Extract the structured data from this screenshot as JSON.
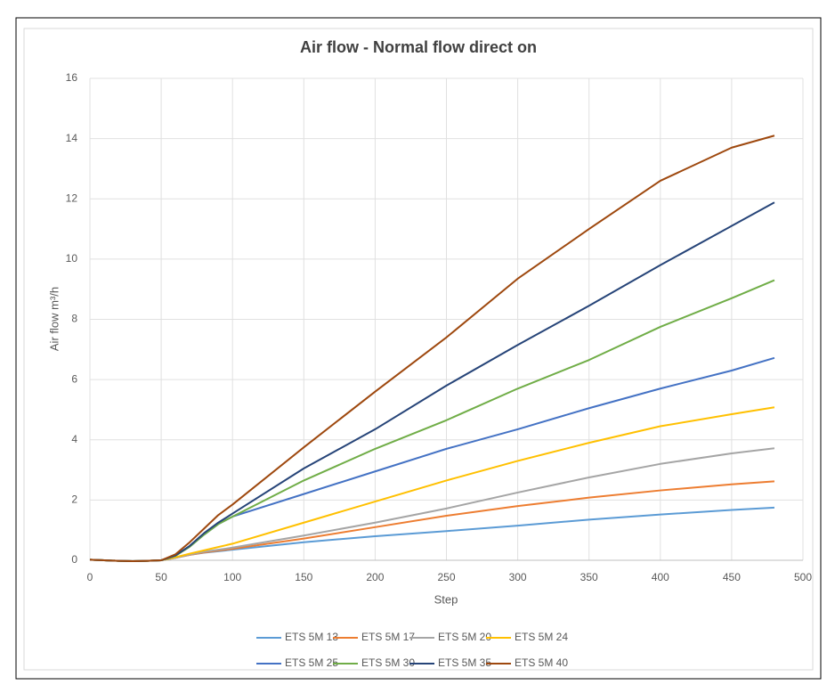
{
  "chart_data": {
    "type": "line",
    "title": "Air flow - Normal flow direct on",
    "x_label": "Step",
    "y_label": "Air flow m³/h",
    "x": [
      0,
      10,
      20,
      30,
      40,
      50,
      60,
      70,
      80,
      90,
      100,
      150,
      200,
      250,
      300,
      350,
      400,
      450,
      480
    ],
    "series": [
      {
        "name": "ETS 5M 13",
        "color": "#5b9bd5",
        "values": [
          0.02,
          0,
          -0.02,
          -0.03,
          -0.02,
          0,
          0.08,
          0.18,
          0.25,
          0.3,
          0.35,
          0.6,
          0.8,
          0.97,
          1.15,
          1.35,
          1.52,
          1.67,
          1.75
        ]
      },
      {
        "name": "ETS 5M 17",
        "color": "#ed7d31",
        "values": [
          0.02,
          0,
          -0.02,
          -0.03,
          -0.02,
          0,
          0.08,
          0.18,
          0.26,
          0.32,
          0.38,
          0.72,
          1.1,
          1.48,
          1.8,
          2.08,
          2.32,
          2.52,
          2.62
        ]
      },
      {
        "name": "ETS 5M 20",
        "color": "#a5a5a5",
        "values": [
          0.02,
          0,
          -0.02,
          -0.03,
          -0.02,
          0,
          0.08,
          0.19,
          0.28,
          0.35,
          0.42,
          0.82,
          1.25,
          1.72,
          2.25,
          2.75,
          3.2,
          3.55,
          3.72
        ]
      },
      {
        "name": "ETS 5M 24",
        "color": "#ffc000",
        "values": [
          0.02,
          0,
          -0.02,
          -0.03,
          -0.02,
          0,
          0.1,
          0.22,
          0.33,
          0.44,
          0.55,
          1.25,
          1.95,
          2.65,
          3.3,
          3.9,
          4.45,
          4.85,
          5.08
        ]
      },
      {
        "name": "ETS 5M 25",
        "color": "#4472c4",
        "values": [
          0.02,
          0,
          -0.02,
          -0.03,
          -0.02,
          0,
          0.15,
          0.45,
          0.85,
          1.2,
          1.45,
          2.2,
          2.95,
          3.7,
          4.35,
          5.05,
          5.7,
          6.3,
          6.72
        ]
      },
      {
        "name": "ETS 5M 30",
        "color": "#70ad47",
        "values": [
          0.02,
          0,
          -0.02,
          -0.03,
          -0.02,
          0,
          0.15,
          0.45,
          0.85,
          1.2,
          1.45,
          2.65,
          3.7,
          4.65,
          5.7,
          6.65,
          7.75,
          8.7,
          9.3
        ]
      },
      {
        "name": "ETS 5M 35",
        "color": "#264478",
        "values": [
          0.02,
          0,
          -0.02,
          -0.03,
          -0.02,
          0,
          0.16,
          0.48,
          0.9,
          1.25,
          1.55,
          3.05,
          4.35,
          5.8,
          7.15,
          8.45,
          9.8,
          11.1,
          11.88
        ]
      },
      {
        "name": "ETS 5M 40",
        "color": "#9e480e",
        "values": [
          0.02,
          0,
          -0.02,
          -0.03,
          -0.02,
          0,
          0.2,
          0.6,
          1.05,
          1.5,
          1.85,
          3.75,
          5.6,
          7.4,
          9.35,
          11.0,
          12.6,
          13.7,
          14.1
        ]
      }
    ],
    "xlim": [
      0,
      500
    ],
    "xticks": [
      0,
      50,
      100,
      150,
      200,
      250,
      300,
      350,
      400,
      450,
      500
    ],
    "ylim": [
      0,
      16
    ],
    "yticks": [
      0,
      2,
      4,
      6,
      8,
      10,
      12,
      14,
      16
    ],
    "grid": true,
    "legend": "bottom"
  }
}
